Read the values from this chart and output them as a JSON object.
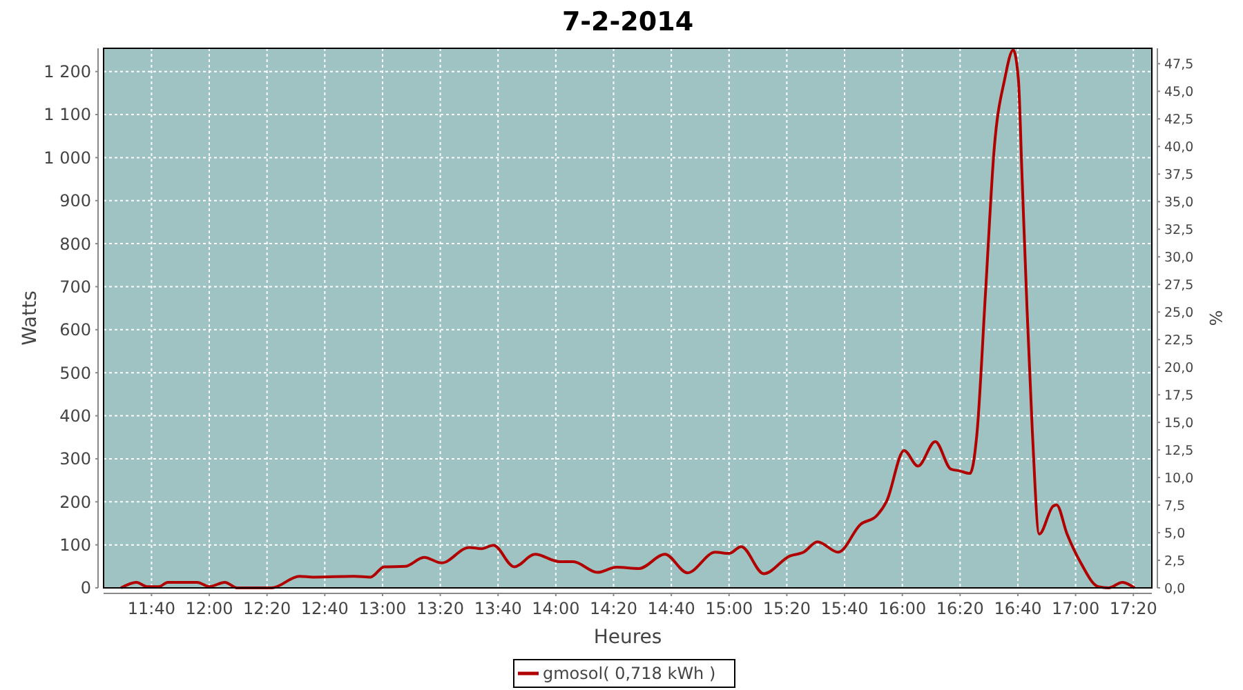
{
  "chart_data": {
    "type": "line",
    "title": "7-2-2014",
    "xlabel": "Heures",
    "ylabel": "Watts",
    "y2label": "%",
    "x": [
      11.49,
      11.58,
      11.64,
      11.71,
      11.76,
      11.93,
      12.0,
      12.09,
      12.16,
      12.36,
      12.52,
      12.6,
      12.84,
      12.93,
      13.01,
      13.13,
      13.24,
      13.34,
      13.5,
      13.57,
      13.64,
      13.76,
      13.88,
      14.02,
      14.1,
      14.24,
      14.35,
      14.48,
      14.63,
      14.76,
      14.92,
      15.0,
      15.07,
      15.2,
      15.35,
      15.43,
      15.51,
      15.63,
      15.76,
      15.85,
      15.91,
      16.01,
      16.09,
      16.19,
      16.28,
      16.33,
      16.39,
      16.43,
      16.48,
      16.53,
      16.59,
      16.64,
      16.67,
      16.69,
      16.72,
      16.75,
      16.79,
      16.87,
      16.89,
      16.95,
      17.03,
      17.13,
      17.19,
      17.27,
      17.34
    ],
    "series": [
      {
        "name": "gmosol( 0,718 kWh )",
        "color": "#b00000",
        "values": [
          0,
          13,
          3,
          3,
          13,
          13,
          3,
          13,
          0,
          0,
          27,
          25,
          27,
          25,
          49,
          50,
          71,
          58,
          94,
          91,
          99,
          49,
          78,
          61,
          61,
          36,
          48,
          45,
          78,
          35,
          83,
          80,
          96,
          33,
          74,
          83,
          107,
          83,
          148,
          167,
          202,
          319,
          283,
          340,
          276,
          272,
          266,
          356,
          686,
          1020,
          1181,
          1250,
          1181,
          966,
          645,
          366,
          125,
          190,
          193,
          126,
          58,
          3,
          0,
          13,
          0
        ]
      }
    ],
    "xlim": [
      11.39,
      17.44
    ],
    "xticks": [
      {
        "value": 11.6667,
        "label": "11:40"
      },
      {
        "value": 12,
        "label": "12:00"
      },
      {
        "value": 12.3333,
        "label": "12:20"
      },
      {
        "value": 12.6667,
        "label": "12:40"
      },
      {
        "value": 13,
        "label": "13:00"
      },
      {
        "value": 13.3333,
        "label": "13:20"
      },
      {
        "value": 13.6667,
        "label": "13:40"
      },
      {
        "value": 14,
        "label": "14:00"
      },
      {
        "value": 14.3333,
        "label": "14:20"
      },
      {
        "value": 14.6667,
        "label": "14:40"
      },
      {
        "value": 15,
        "label": "15:00"
      },
      {
        "value": 15.3333,
        "label": "15:20"
      },
      {
        "value": 15.6667,
        "label": "15:40"
      },
      {
        "value": 16,
        "label": "16:00"
      },
      {
        "value": 16.3333,
        "label": "16:20"
      },
      {
        "value": 16.6667,
        "label": "16:40"
      },
      {
        "value": 17,
        "label": "17:00"
      },
      {
        "value": 17.3333,
        "label": "17:20"
      }
    ],
    "ylim": [
      0,
      1254
    ],
    "yticks": [
      0,
      100,
      200,
      300,
      400,
      500,
      600,
      700,
      800,
      900,
      {
        "value": 1000,
        "label": "1 000"
      },
      {
        "value": 1100,
        "label": "1 100"
      },
      {
        "value": 1200,
        "label": "1 200"
      }
    ],
    "y2lim": [
      0,
      48.9
    ],
    "y2ticks": [
      {
        "value": 0,
        "label": "0,0"
      },
      {
        "value": 2.5,
        "label": "2,5"
      },
      {
        "value": 5,
        "label": "5,0"
      },
      {
        "value": 7.5,
        "label": "7,5"
      },
      {
        "value": 10,
        "label": "10,0"
      },
      {
        "value": 12.5,
        "label": "12,5"
      },
      {
        "value": 15,
        "label": "15,0"
      },
      {
        "value": 17.5,
        "label": "17,5"
      },
      {
        "value": 20,
        "label": "20,0"
      },
      {
        "value": 22.5,
        "label": "22,5"
      },
      {
        "value": 25,
        "label": "25,0"
      },
      {
        "value": 27.5,
        "label": "27,5"
      },
      {
        "value": 30,
        "label": "30,0"
      },
      {
        "value": 32.5,
        "label": "32,5"
      },
      {
        "value": 35,
        "label": "35,0"
      },
      {
        "value": 37.5,
        "label": "37,5"
      },
      {
        "value": 40,
        "label": "40,0"
      },
      {
        "value": 42.5,
        "label": "42,5"
      },
      {
        "value": 45,
        "label": "45,0"
      },
      {
        "value": 47.5,
        "label": "47,5"
      }
    ],
    "grid": true,
    "legend": "bottom",
    "marker": "none",
    "line_style": "solid"
  }
}
